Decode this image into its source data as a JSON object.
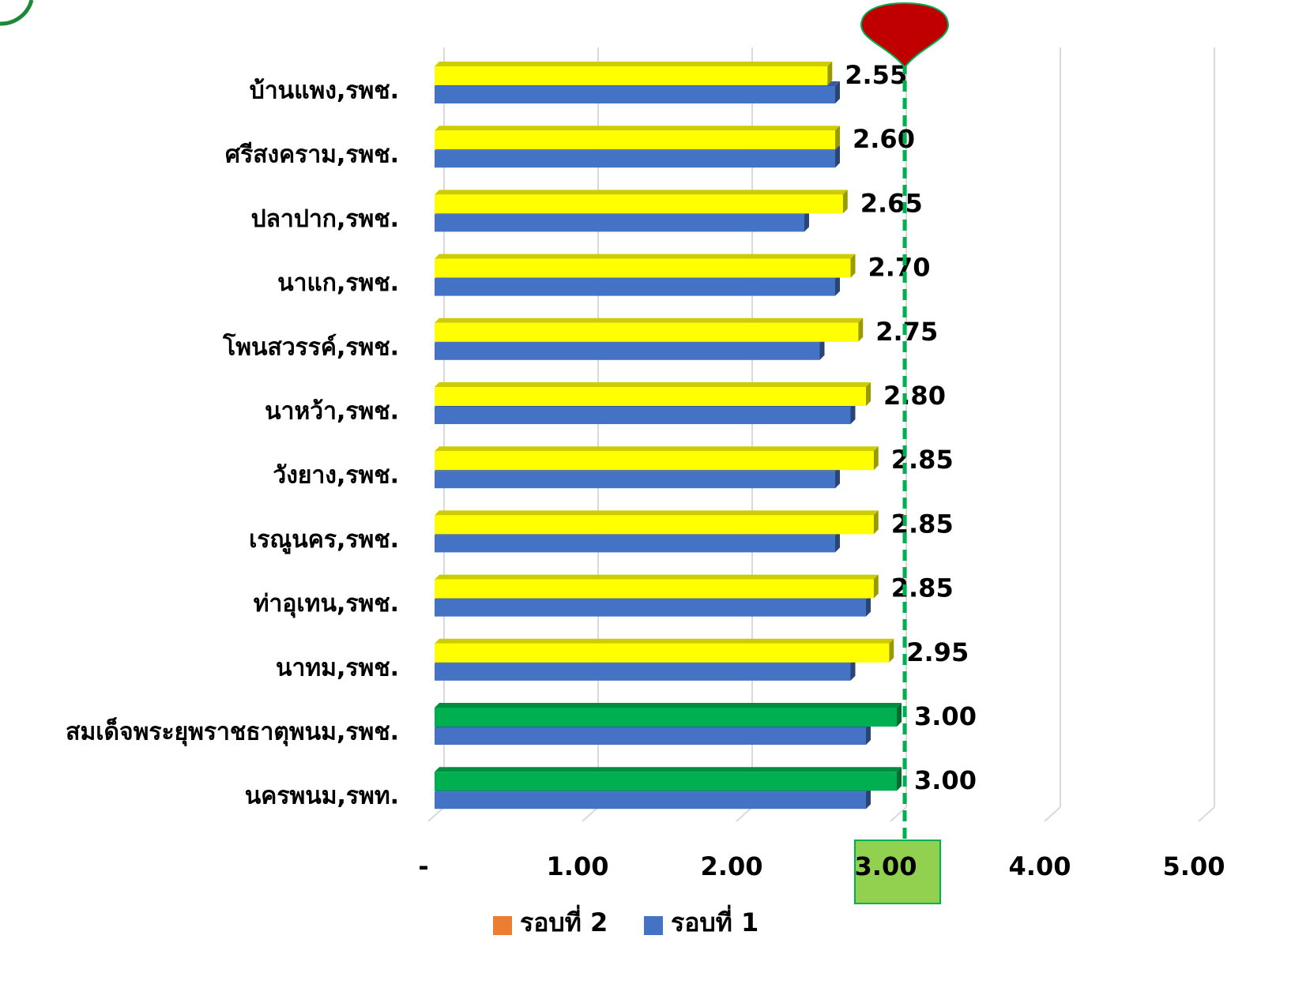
{
  "chart_data": {
    "type": "hbar",
    "categories": [
      "บ้านแพง,รพช.",
      "ศรีสงคราม,รพช.",
      "ปลาปาก,รพช.",
      "นาแก,รพช.",
      "โพนสวรรค์,รพช.",
      "นาหว้า,รพช.",
      "วังยาง,รพช.",
      "เรณูนคร,รพช.",
      "ท่าอุเทน,รพช.",
      "นาทม,รพช.",
      "สมเด็จพระยุพราชธาตุพนม,รพช.",
      "นครพนม,รพท."
    ],
    "series": [
      {
        "name": "รอบที่ 2",
        "color": "#ed7d31",
        "bar_colors": [
          "#ffff00",
          "#ffff00",
          "#ffff00",
          "#ffff00",
          "#ffff00",
          "#ffff00",
          "#ffff00",
          "#ffff00",
          "#ffff00",
          "#ffff00",
          "#00b050",
          "#00b050"
        ],
        "values": [
          2.55,
          2.6,
          2.65,
          2.7,
          2.75,
          2.8,
          2.85,
          2.85,
          2.85,
          2.95,
          3.0,
          3.0
        ],
        "value_labels": [
          "2.55",
          "2.60",
          "2.65",
          "2.70",
          "2.75",
          "2.80",
          "2.85",
          "2.85",
          "2.85",
          "2.95",
          "3.00",
          "3.00"
        ]
      },
      {
        "name": "รอบที่ 1",
        "color": "#4472c4",
        "values": [
          2.6,
          2.6,
          2.4,
          2.6,
          2.5,
          2.7,
          2.6,
          2.6,
          2.8,
          2.7,
          2.8,
          2.8
        ]
      }
    ],
    "xlim": [
      0,
      5
    ],
    "xticks": [
      {
        "value": 0,
        "label": "-"
      },
      {
        "value": 1,
        "label": "1.00"
      },
      {
        "value": 2,
        "label": "2.00"
      },
      {
        "value": 3,
        "label": "3.00"
      },
      {
        "value": 4,
        "label": "4.00"
      },
      {
        "value": 5,
        "label": "5.00"
      }
    ],
    "reference_line": 3,
    "grid": true
  }
}
